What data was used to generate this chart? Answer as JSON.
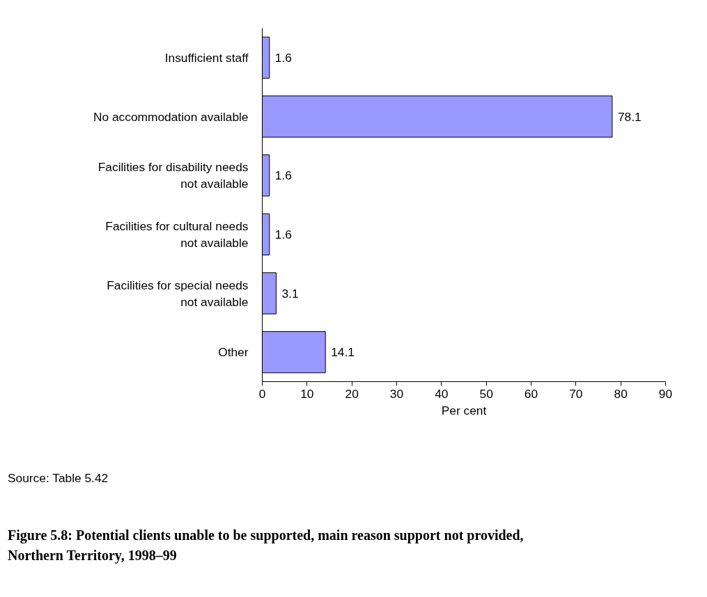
{
  "chart_data": {
    "type": "bar",
    "orientation": "horizontal",
    "title": "Figure 5.8: Potential clients unable to be supported, main reason support not provided, Northern Territory, 1998–99",
    "xlabel": "Per cent",
    "categories": [
      "Insufficient staff",
      "No accommodation available",
      "Facilities for disability needs\nnot available",
      "Facilities for cultural needs\nnot available",
      "Facilities for special needs\nnot available",
      "Other"
    ],
    "values": [
      1.6,
      78.1,
      1.6,
      1.6,
      3.1,
      14.1
    ],
    "color": "#9999ff",
    "xlim": [
      0,
      90
    ],
    "xticks": [
      0,
      10,
      20,
      30,
      40,
      50,
      60,
      70,
      80,
      90
    ],
    "data_labels": true,
    "grid": false,
    "annotations": [
      "Source: Table 5.42"
    ]
  }
}
